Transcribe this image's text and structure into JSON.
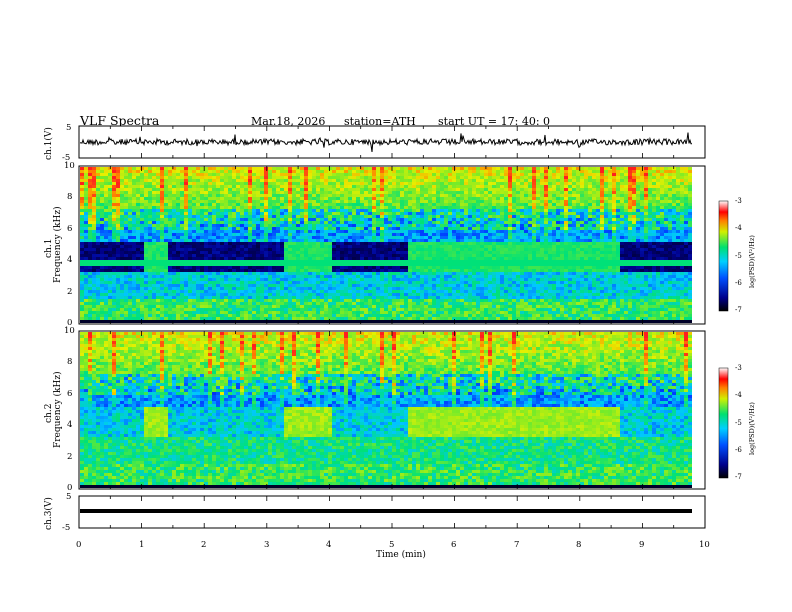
{
  "header": {
    "title": "VLF  Spectra",
    "date": "Mar.18, 2026",
    "station": "station=ATH",
    "start": "start  UT  =    17: 40: 0"
  },
  "panels": {
    "ch1_wave_label": "ch.1(V)",
    "ch3_wave_label": "ch.3(V)",
    "ch1_spec_label": "ch.1",
    "ch2_spec_label": "ch.2",
    "freq_label": "Frequency  (kHz)",
    "x_label": "Time  (min)",
    "colorbar_label": "log(PSD)(V²/Hz)"
  },
  "colors": {
    "low": "#00008b",
    "mid": "#00c8ff",
    "green": "#00e676",
    "high": "#ffe000",
    "peak": "#ff2020"
  },
  "chart_data": [
    {
      "type": "line",
      "name": "ch.1 waveform",
      "ylabel": "ch.1(V)",
      "ylim": [
        -5,
        5
      ],
      "yticks": [
        "5",
        "-5"
      ],
      "xlim": [
        0,
        10
      ],
      "note": "noisy signal around 0 V with spikes"
    },
    {
      "type": "heatmap",
      "name": "ch.1 spectrogram",
      "ylabel": "Frequency  (kHz)",
      "ylim": [
        0,
        10
      ],
      "yticks": [
        "0",
        "2",
        "4",
        "6",
        "8",
        "10"
      ],
      "xlim": [
        0,
        10
      ],
      "xticks": [
        "0",
        "1",
        "2",
        "3",
        "4",
        "5",
        "6",
        "7",
        "8",
        "9",
        "10"
      ],
      "colorbar": {
        "range": [
          -7,
          -3
        ],
        "ticks": [
          "-3",
          "-4",
          "-5",
          "-6",
          "-7"
        ],
        "label": "log(PSD)(V²/Hz)"
      },
      "bright_segments_min": [
        [
          1.03,
          1.38
        ],
        [
          3.25,
          3.98
        ],
        [
          5.22,
          8.6
        ]
      ]
    },
    {
      "type": "heatmap",
      "name": "ch.2 spectrogram",
      "ylabel": "Frequency  (kHz)",
      "ylim": [
        0,
        10
      ],
      "yticks": [
        "0",
        "2",
        "4",
        "6",
        "8",
        "10"
      ],
      "xlim": [
        0,
        10
      ],
      "colorbar": {
        "range": [
          -7,
          -3
        ],
        "ticks": [
          "-3",
          "-4",
          "-5",
          "-6",
          "-7"
        ],
        "label": "log(PSD)(V²/Hz)"
      },
      "bright_segments_min": [
        [
          1.03,
          1.38
        ],
        [
          3.25,
          3.98
        ],
        [
          5.22,
          8.6
        ]
      ]
    },
    {
      "type": "line",
      "name": "ch.3 waveform",
      "ylabel": "ch.3(V)",
      "ylim": [
        -5,
        5
      ],
      "yticks": [
        "5",
        "-5"
      ],
      "xlim": [
        0,
        10
      ],
      "xticks": [
        "0",
        "1",
        "2",
        "3",
        "4",
        "5",
        "6",
        "7",
        "8",
        "9",
        "10"
      ],
      "xlabel": "Time  (min)",
      "note": "flat thick line near -1 V"
    }
  ]
}
